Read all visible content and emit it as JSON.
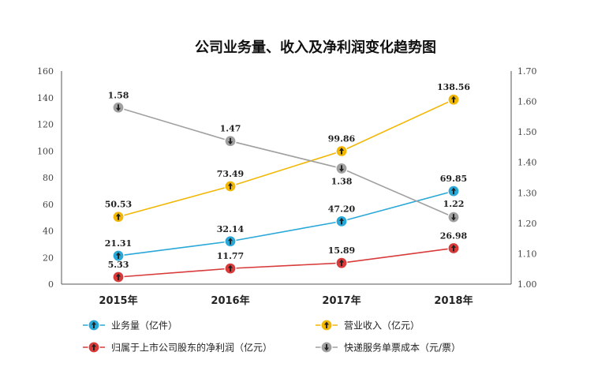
{
  "chart_data": {
    "type": "line",
    "title": "公司业务量、收入及净利润变化趋势图",
    "categories": [
      "2015年",
      "2016年",
      "2017年",
      "2018年"
    ],
    "left_axis": {
      "min": 0,
      "max": 160,
      "step": 20,
      "ticks": [
        "0",
        "20",
        "40",
        "60",
        "80",
        "100",
        "120",
        "140",
        "160"
      ]
    },
    "right_axis": {
      "min": 1.0,
      "max": 1.7,
      "step": 0.1,
      "ticks": [
        "1.00",
        "1.10",
        "1.20",
        "1.30",
        "1.40",
        "1.50",
        "1.60",
        "1.70"
      ]
    },
    "grid": false,
    "legend_position": "bottom",
    "series": [
      {
        "name": "业务量（亿件）",
        "axis": "left",
        "color": "#29a8d8",
        "marker": "up",
        "values": [
          21.31,
          32.14,
          47.2,
          69.85
        ],
        "labels": [
          "21.31",
          "32.14",
          "47.20",
          "69.85"
        ]
      },
      {
        "name": "营业收入（亿元）",
        "axis": "left",
        "color": "#f2b705",
        "marker": "up",
        "values": [
          50.53,
          73.49,
          99.86,
          138.56
        ],
        "labels": [
          "50.53",
          "73.49",
          "99.86",
          "138.56"
        ]
      },
      {
        "name": "归属于上市公司股东的净利润（亿元）",
        "axis": "left",
        "color": "#d93a3a",
        "marker": "up",
        "values": [
          5.33,
          11.77,
          15.89,
          26.98
        ],
        "labels": [
          "5.33",
          "11.77",
          "15.89",
          "26.98"
        ]
      },
      {
        "name": "快递服务单票成本（元/票）",
        "axis": "right",
        "color": "#a0a0a0",
        "marker": "down",
        "values": [
          1.58,
          1.47,
          1.38,
          1.22
        ],
        "labels": [
          "1.58",
          "1.47",
          "1.38",
          "1.22"
        ]
      }
    ]
  }
}
